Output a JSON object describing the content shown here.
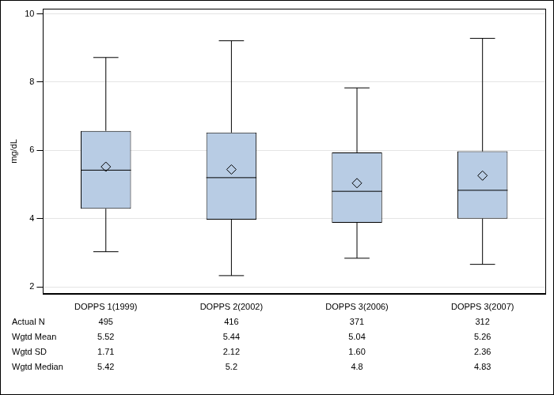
{
  "chart_data": {
    "type": "boxplot",
    "y_label": "mg/dL",
    "categories": [
      "DOPPS 1(1999)",
      "DOPPS 2(2002)",
      "DOPPS 3(2006)",
      "DOPPS 3(2007)"
    ],
    "min": [
      3.03,
      2.33,
      2.84,
      2.66
    ],
    "q1": [
      4.29,
      3.97,
      3.88,
      4.0
    ],
    "median": [
      5.42,
      5.2,
      4.8,
      4.83
    ],
    "q3": [
      6.57,
      6.52,
      5.94,
      5.97
    ],
    "max": [
      8.72,
      9.21,
      7.83,
      9.28
    ],
    "mean": [
      5.52,
      5.44,
      5.04,
      5.26
    ],
    "color": "#b8cce4",
    "marker": "diamond",
    "ylim": [
      1.8,
      10.15
    ],
    "yticks": [
      2,
      4,
      6,
      8,
      10
    ],
    "grid": true,
    "table": {
      "rows": [
        {
          "label": "Actual N",
          "values": [
            "495",
            "416",
            "371",
            "312"
          ]
        },
        {
          "label": "Wgtd Mean",
          "values": [
            "5.52",
            "5.44",
            "5.04",
            "5.26"
          ]
        },
        {
          "label": "Wgtd SD",
          "values": [
            "1.71",
            "2.12",
            "1.60",
            "2.36"
          ]
        },
        {
          "label": "Wgtd Median",
          "values": [
            "5.42",
            "5.2",
            "4.8",
            "4.83"
          ]
        }
      ]
    }
  }
}
